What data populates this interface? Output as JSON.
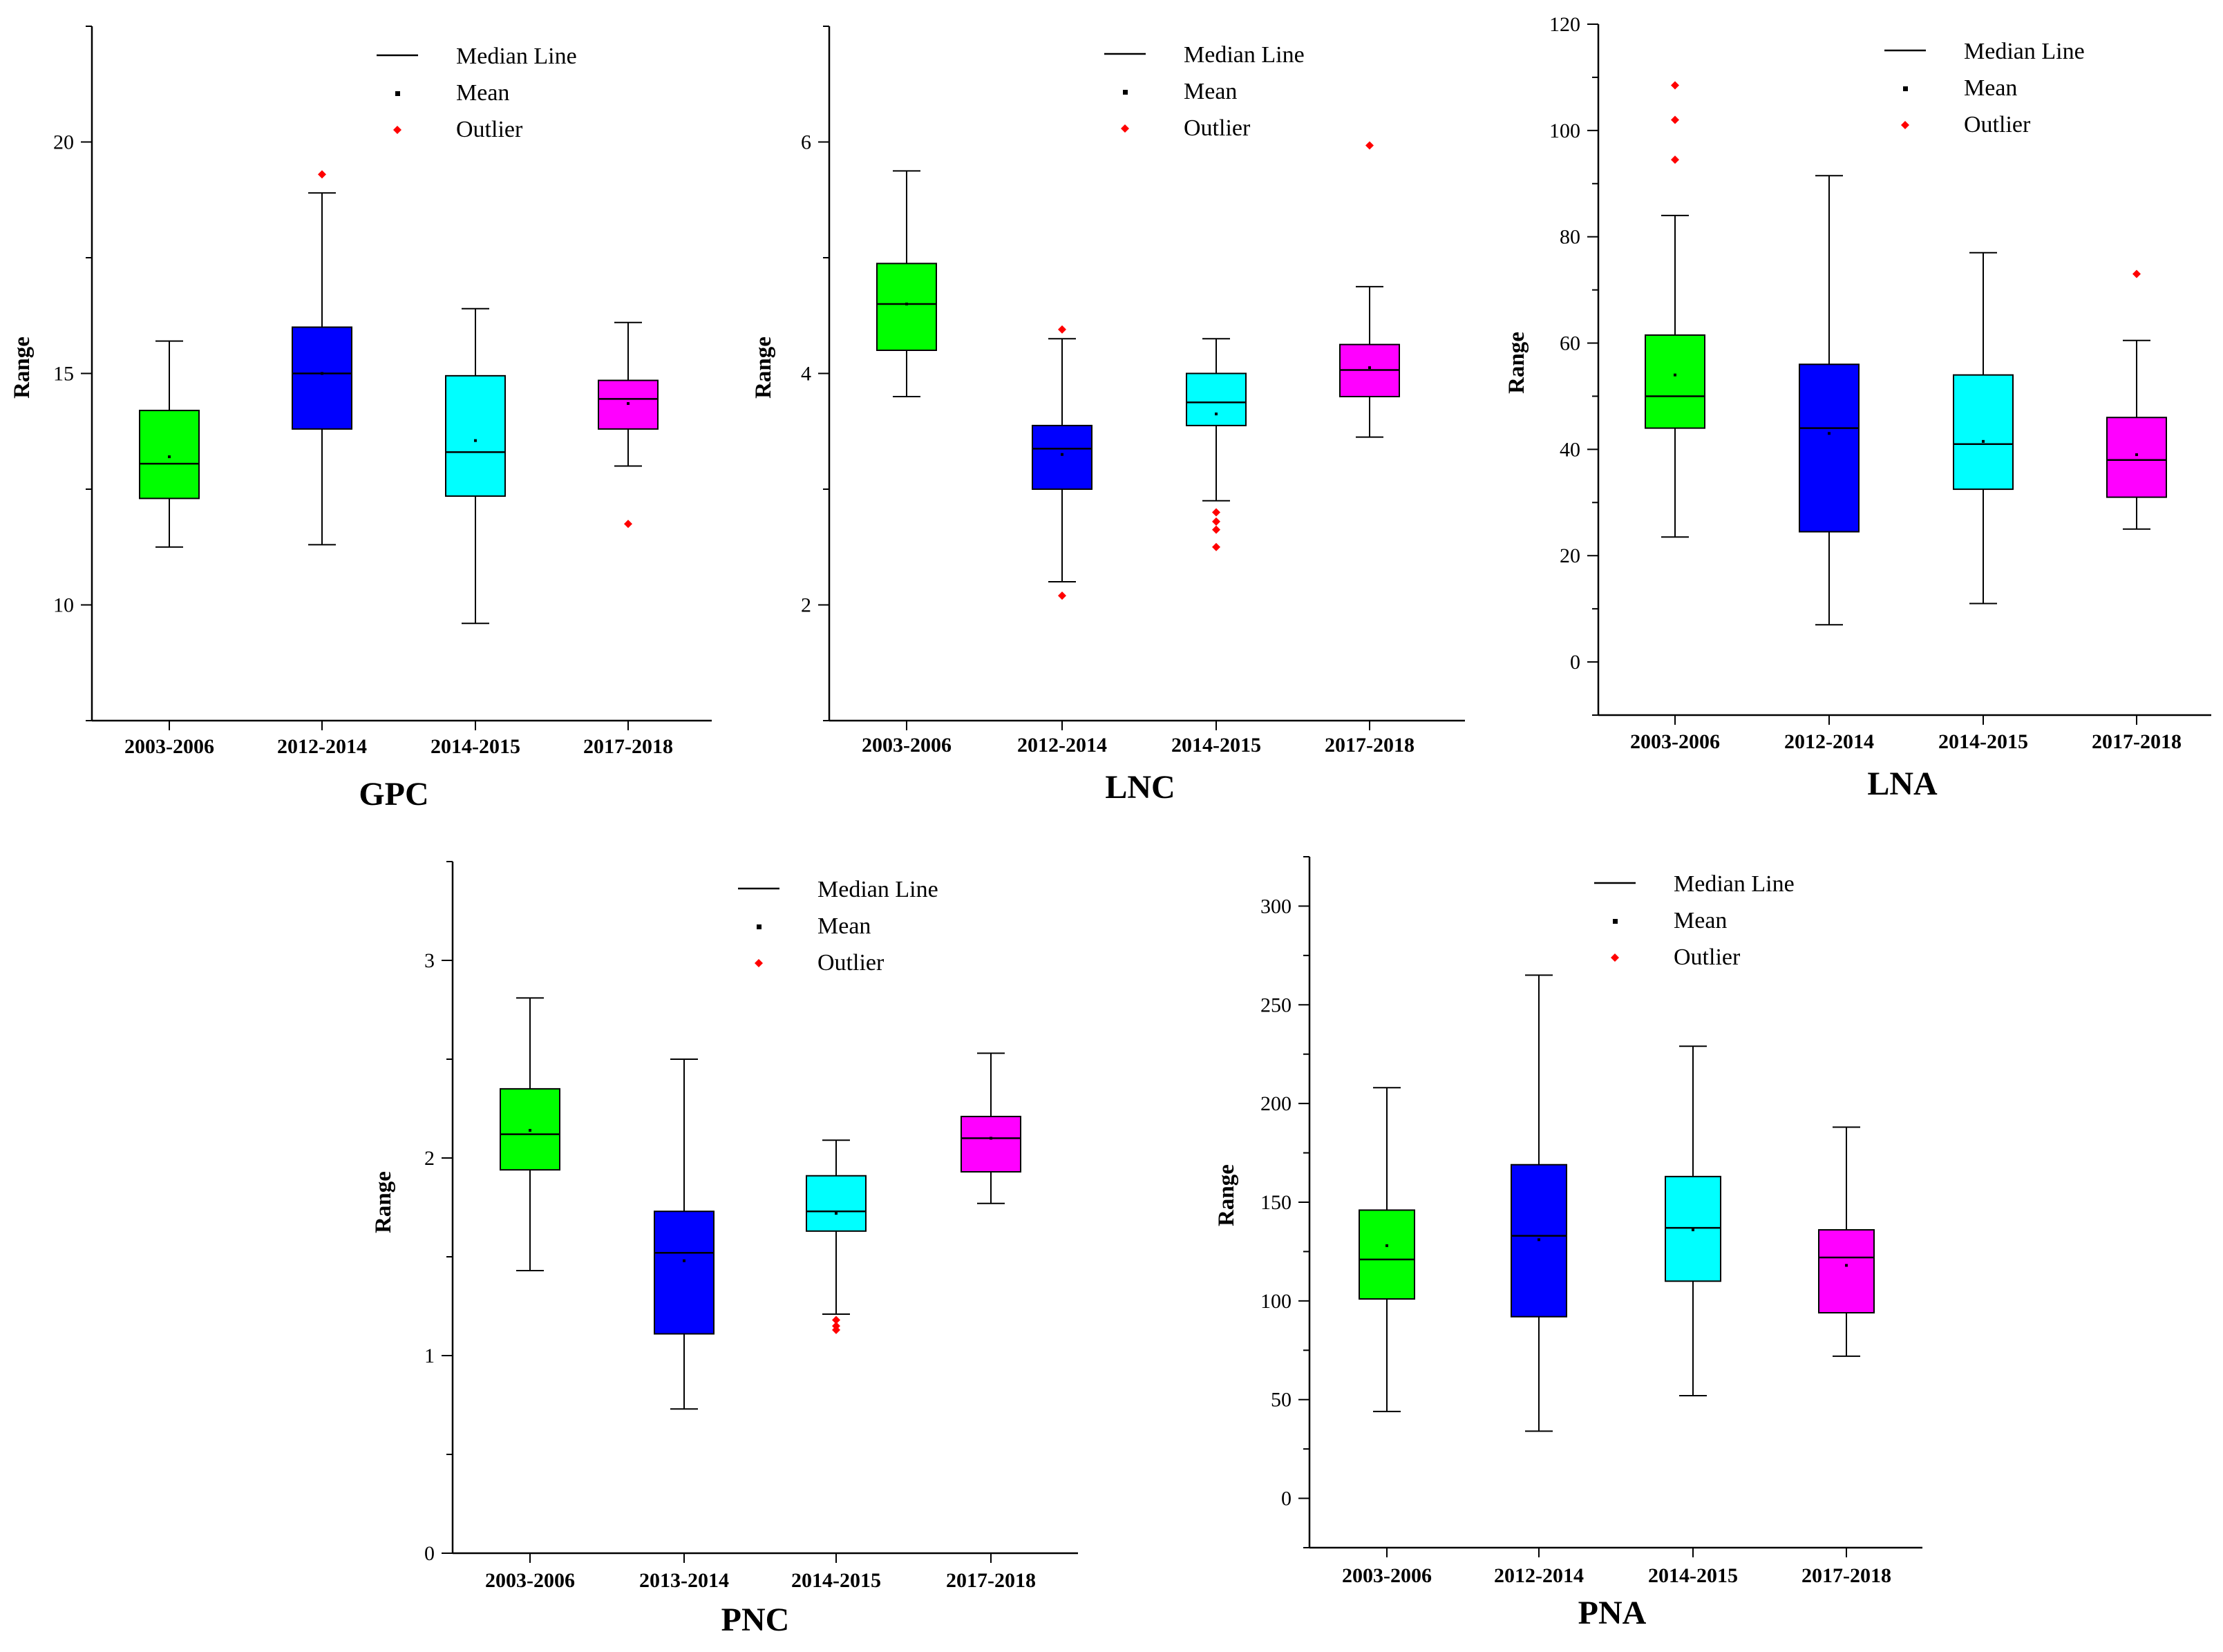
{
  "colors": {
    "c1": "#00ff00",
    "c2": "#0000ff",
    "c3": "#00ffff",
    "c4": "#ff00ff",
    "outlier": "#ff0000",
    "line": "#000000"
  },
  "legend": {
    "median": "Median Line",
    "mean": "Mean",
    "outlier": "Outlier"
  },
  "chart_data": [
    {
      "id": "gpc",
      "type": "box",
      "title": "GPC",
      "ylabel": "Range",
      "ylim": [
        7.5,
        22.5
      ],
      "yticks": [
        10,
        15,
        20
      ],
      "categories": [
        "2003-2006",
        "2012-2014",
        "2014-2015",
        "2017-2018"
      ],
      "boxes": [
        {
          "whisker_low": 11.25,
          "q1": 12.3,
          "median": 13.05,
          "q3": 14.2,
          "whisker_high": 15.7,
          "mean": 13.2,
          "outliers": []
        },
        {
          "whisker_low": 11.3,
          "q1": 13.8,
          "median": 15.0,
          "q3": 16.0,
          "whisker_high": 18.9,
          "mean": 15.0,
          "outliers": [
            19.3
          ]
        },
        {
          "whisker_low": 9.6,
          "q1": 12.35,
          "median": 13.3,
          "q3": 14.95,
          "whisker_high": 16.4,
          "mean": 13.55,
          "outliers": []
        },
        {
          "whisker_low": 13.0,
          "q1": 13.8,
          "median": 14.45,
          "q3": 14.85,
          "whisker_high": 16.1,
          "mean": 14.35,
          "outliers": [
            11.75
          ]
        }
      ]
    },
    {
      "id": "lnc",
      "type": "box",
      "title": "LNC",
      "ylabel": "Range",
      "ylim": [
        1,
        7
      ],
      "yticks": [
        2,
        4,
        6
      ],
      "categories": [
        "2003-2006",
        "2012-2014",
        "2014-2015",
        "2017-2018"
      ],
      "boxes": [
        {
          "whisker_low": 3.8,
          "q1": 4.2,
          "median": 4.6,
          "q3": 4.95,
          "whisker_high": 5.75,
          "mean": 4.6,
          "outliers": []
        },
        {
          "whisker_low": 2.2,
          "q1": 3.0,
          "median": 3.35,
          "q3": 3.55,
          "whisker_high": 4.3,
          "mean": 3.3,
          "outliers": [
            2.08,
            4.38
          ]
        },
        {
          "whisker_low": 2.9,
          "q1": 3.55,
          "median": 3.75,
          "q3": 4.0,
          "whisker_high": 4.3,
          "mean": 3.65,
          "outliers": [
            2.5,
            2.65,
            2.72,
            2.8
          ]
        },
        {
          "whisker_low": 3.45,
          "q1": 3.8,
          "median": 4.03,
          "q3": 4.25,
          "whisker_high": 4.75,
          "mean": 4.05,
          "outliers": [
            5.97
          ]
        }
      ]
    },
    {
      "id": "lna",
      "type": "box",
      "title": "LNA",
      "ylabel": "Range",
      "ylim": [
        -10,
        120
      ],
      "yticks": [
        0,
        20,
        40,
        60,
        80,
        100,
        120
      ],
      "categories": [
        "2003-2006",
        "2012-2014",
        "2014-2015",
        "2017-2018"
      ],
      "boxes": [
        {
          "whisker_low": 23.5,
          "q1": 44,
          "median": 50,
          "q3": 61.5,
          "whisker_high": 84,
          "mean": 54,
          "outliers": [
            94.5,
            102,
            108.5
          ]
        },
        {
          "whisker_low": 7,
          "q1": 24.5,
          "median": 44,
          "q3": 56,
          "whisker_high": 91.5,
          "mean": 43,
          "outliers": []
        },
        {
          "whisker_low": 11,
          "q1": 32.5,
          "median": 41,
          "q3": 54,
          "whisker_high": 77,
          "mean": 41.5,
          "outliers": []
        },
        {
          "whisker_low": 25,
          "q1": 31,
          "median": 38,
          "q3": 46,
          "whisker_high": 60.5,
          "mean": 39,
          "outliers": [
            73
          ]
        }
      ]
    },
    {
      "id": "pnc",
      "type": "box",
      "title": "PNC",
      "ylabel": "Range",
      "ylim": [
        0,
        3.5
      ],
      "yticks": [
        0,
        1,
        2,
        3
      ],
      "categories": [
        "2003-2006",
        "2013-2014",
        "2014-2015",
        "2017-2018"
      ],
      "boxes": [
        {
          "whisker_low": 1.43,
          "q1": 1.94,
          "median": 2.12,
          "q3": 2.35,
          "whisker_high": 2.81,
          "mean": 2.14,
          "outliers": []
        },
        {
          "whisker_low": 0.73,
          "q1": 1.11,
          "median": 1.52,
          "q3": 1.73,
          "whisker_high": 2.5,
          "mean": 1.48,
          "outliers": []
        },
        {
          "whisker_low": 1.21,
          "q1": 1.63,
          "median": 1.73,
          "q3": 1.91,
          "whisker_high": 2.09,
          "mean": 1.72,
          "outliers": [
            1.13,
            1.15,
            1.18
          ]
        },
        {
          "whisker_low": 1.77,
          "q1": 1.93,
          "median": 2.1,
          "q3": 2.21,
          "whisker_high": 2.53,
          "mean": 2.1,
          "outliers": []
        }
      ]
    },
    {
      "id": "pna",
      "type": "box",
      "title": "PNA",
      "ylabel": "Range",
      "ylim": [
        -25,
        325
      ],
      "yticks": [
        0,
        50,
        100,
        150,
        200,
        250,
        300
      ],
      "categories": [
        "2003-2006",
        "2012-2014",
        "2014-2015",
        "2017-2018"
      ],
      "boxes": [
        {
          "whisker_low": 44,
          "q1": 101,
          "median": 121,
          "q3": 146,
          "whisker_high": 208,
          "mean": 128,
          "outliers": []
        },
        {
          "whisker_low": 34,
          "q1": 92,
          "median": 133,
          "q3": 169,
          "whisker_high": 265,
          "mean": 131,
          "outliers": []
        },
        {
          "whisker_low": 52,
          "q1": 110,
          "median": 137,
          "q3": 163,
          "whisker_high": 229,
          "mean": 136,
          "outliers": []
        },
        {
          "whisker_low": 72,
          "q1": 94,
          "median": 122,
          "q3": 136,
          "whisker_high": 188,
          "mean": 118,
          "outliers": []
        }
      ]
    }
  ]
}
